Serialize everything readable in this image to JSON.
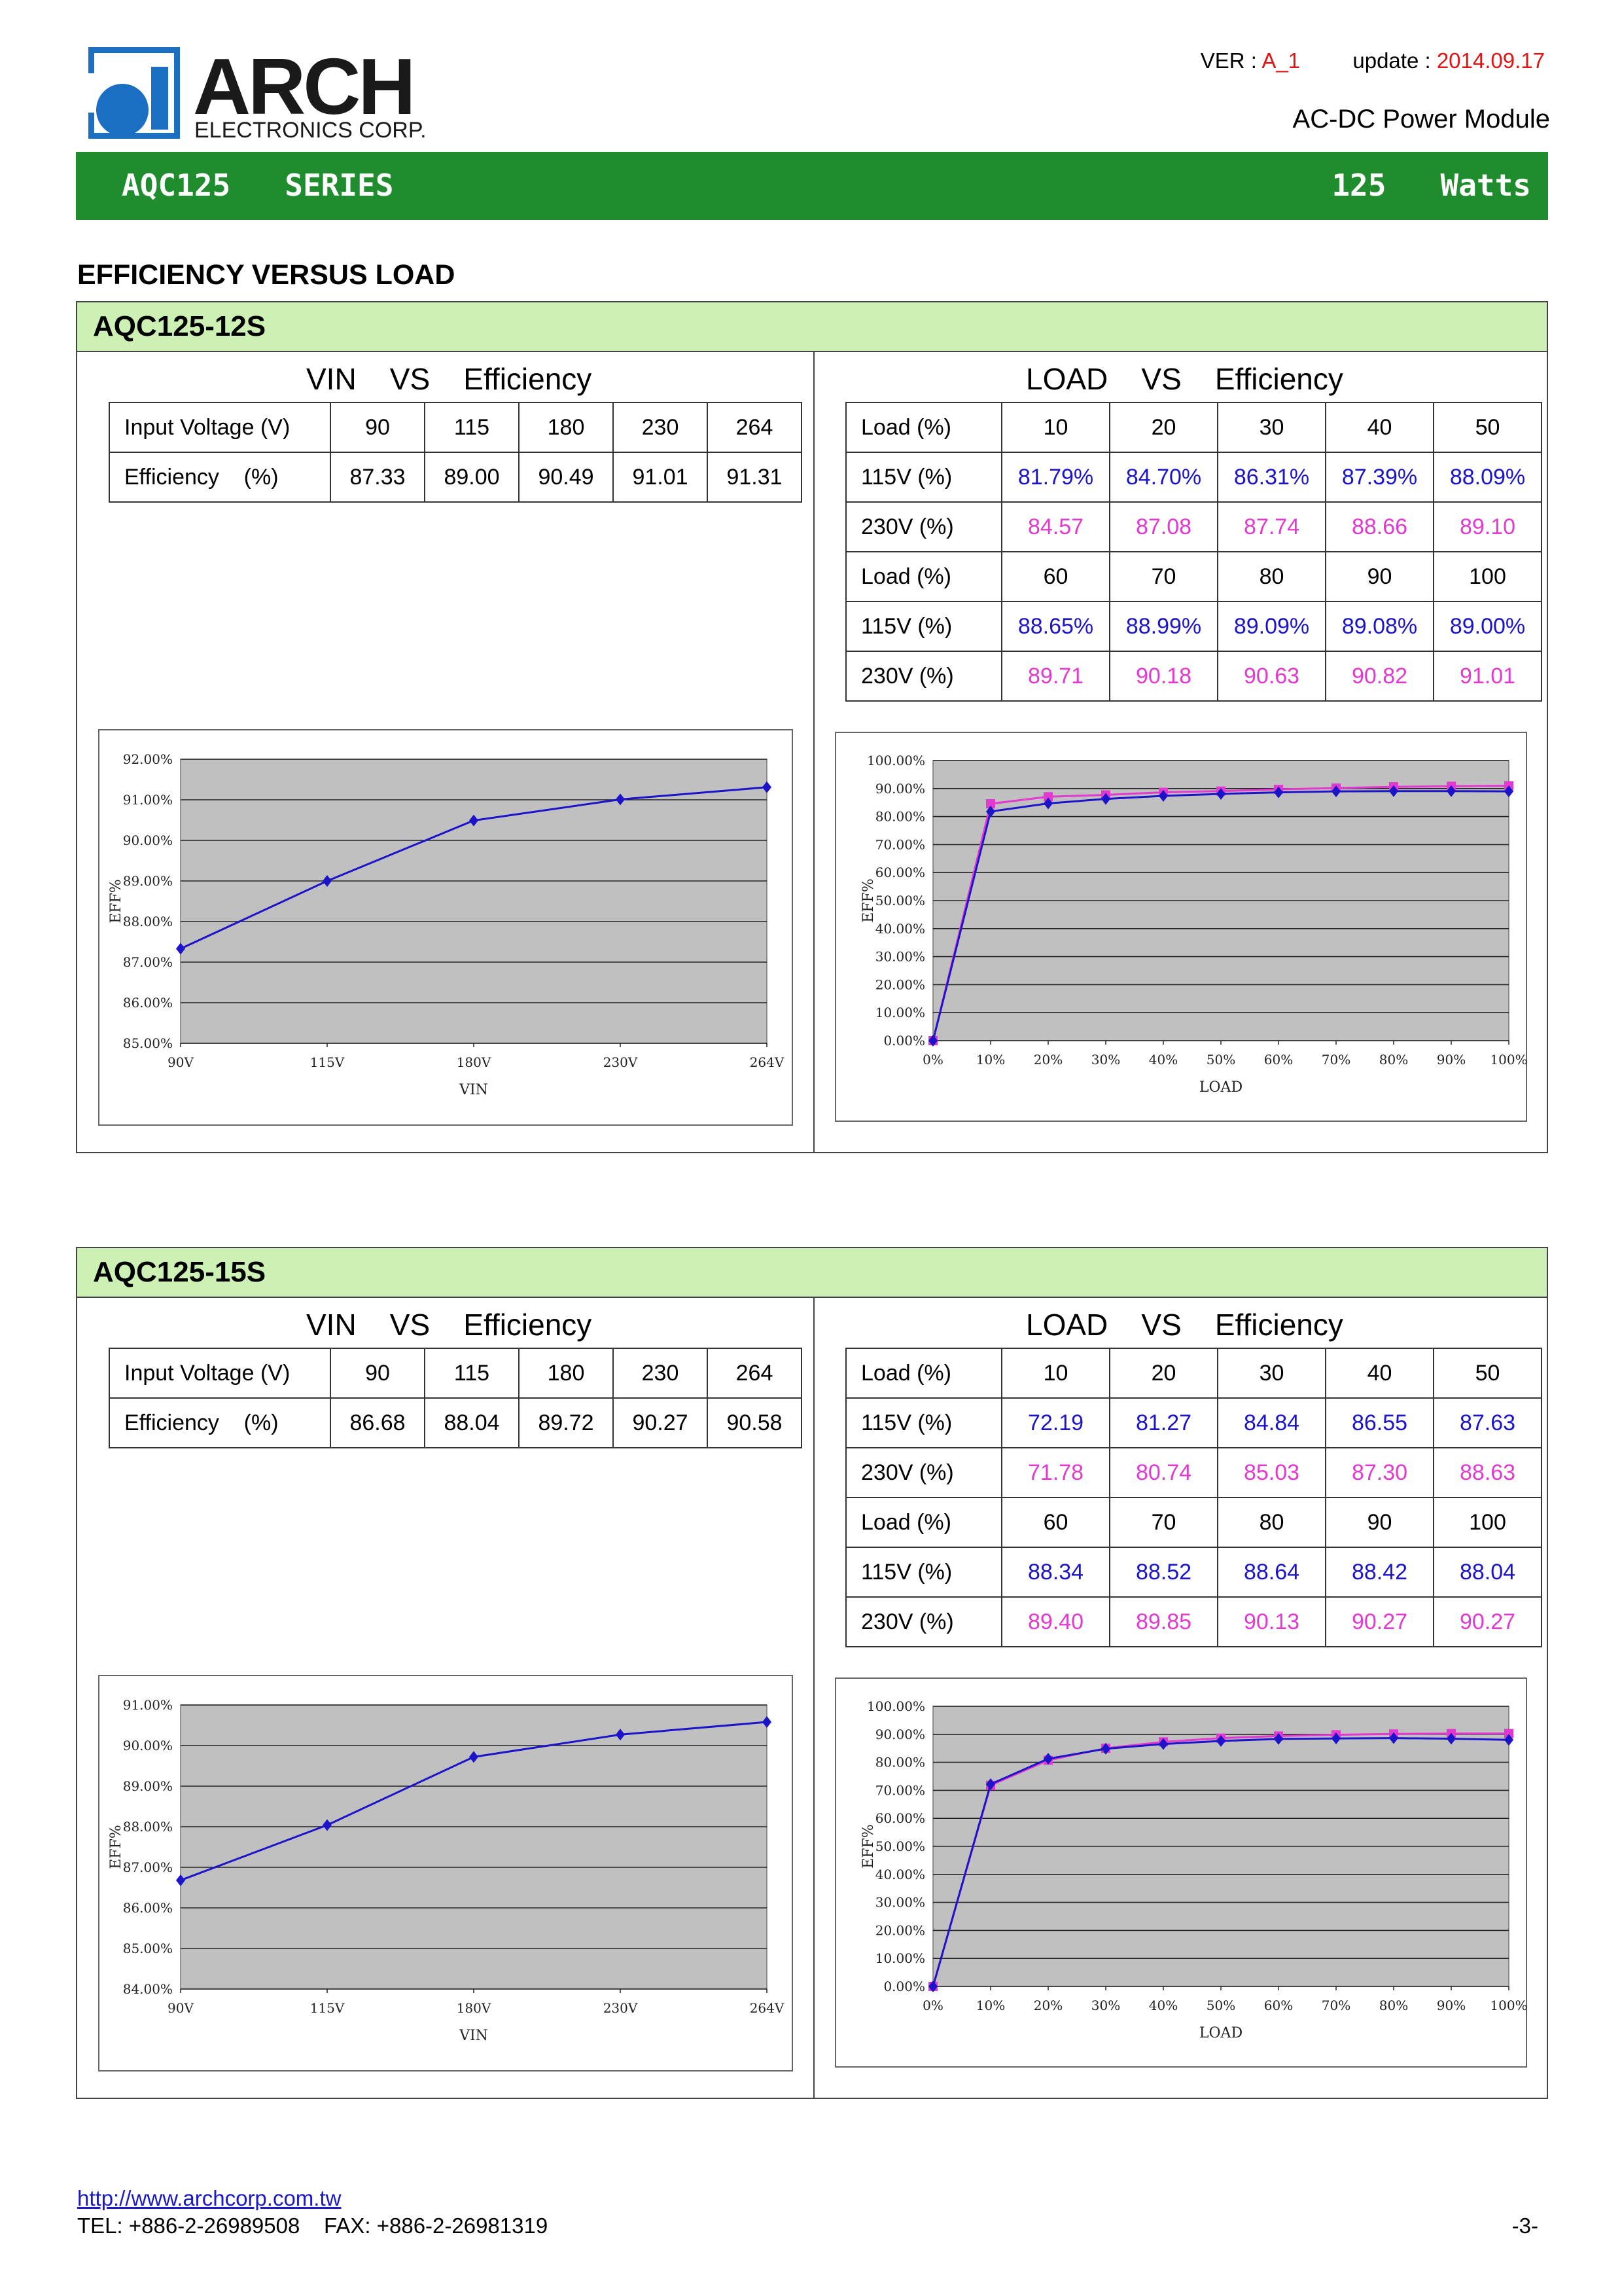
{
  "header": {
    "logo_word": "ARCH",
    "logo_sub": "ELECTRONICS CORP.",
    "ver_label": "VER : ",
    "ver_value": "A_1",
    "update_label": "update : ",
    "update_value": "2014.09.17",
    "subtitle": "AC-DC Power Module",
    "series_left": "AQC125   SERIES",
    "series_right": "125   Watts",
    "section_title": "EFFICIENCY VERSUS LOAD"
  },
  "colors": {
    "green_bar": "#1f8c2d",
    "panel_head": "#cdf0b5",
    "series_115": "#1c14c8",
    "series_230": "#e23ad0",
    "plot_bg": "#c0c0c0",
    "version": "#e01515"
  },
  "models": [
    {
      "name": "AQC125-12S",
      "vin_caption": "VIN    VS    Efficiency",
      "load_caption": "LOAD    VS    Efficiency",
      "vin_table": {
        "row1_label": "Input Voltage (V)",
        "voltages": [
          "90",
          "115",
          "180",
          "230",
          "264"
        ],
        "row2_label": "Efficiency    (%)",
        "efficiency": [
          "87.33",
          "89.00",
          "90.49",
          "91.01",
          "91.31"
        ]
      },
      "load_table": {
        "load_label": "Load (%)",
        "v115_label": "115V (%)",
        "v230_label": "230V (%)",
        "loads_a": [
          "10",
          "20",
          "30",
          "40",
          "50"
        ],
        "v115_a": [
          "81.79%",
          "84.70%",
          "86.31%",
          "87.39%",
          "88.09%"
        ],
        "v230_a": [
          "84.57",
          "87.08",
          "87.74",
          "88.66",
          "89.10"
        ],
        "loads_b": [
          "60",
          "70",
          "80",
          "90",
          "100"
        ],
        "v115_b": [
          "88.65%",
          "88.99%",
          "89.09%",
          "89.08%",
          "89.00%"
        ],
        "v230_b": [
          "89.71",
          "90.18",
          "90.63",
          "90.82",
          "91.01"
        ]
      }
    },
    {
      "name": "AQC125-15S",
      "vin_caption": "VIN    VS    Efficiency",
      "load_caption": "LOAD    VS    Efficiency",
      "vin_table": {
        "row1_label": "Input Voltage (V)",
        "voltages": [
          "90",
          "115",
          "180",
          "230",
          "264"
        ],
        "row2_label": "Efficiency    (%)",
        "efficiency": [
          "86.68",
          "88.04",
          "89.72",
          "90.27",
          "90.58"
        ]
      },
      "load_table": {
        "load_label": "Load (%)",
        "v115_label": "115V (%)",
        "v230_label": "230V (%)",
        "loads_a": [
          "10",
          "20",
          "30",
          "40",
          "50"
        ],
        "v115_a": [
          "72.19",
          "81.27",
          "84.84",
          "86.55",
          "87.63"
        ],
        "v230_a": [
          "71.78",
          "80.74",
          "85.03",
          "87.30",
          "88.63"
        ],
        "loads_b": [
          "60",
          "70",
          "80",
          "90",
          "100"
        ],
        "v115_b": [
          "88.34",
          "88.52",
          "88.64",
          "88.42",
          "88.04"
        ],
        "v230_b": [
          "89.40",
          "89.85",
          "90.13",
          "90.27",
          "90.27"
        ]
      }
    }
  ],
  "chart_data": [
    {
      "type": "line",
      "model": "AQC125-12S",
      "categories": [
        "90V",
        "115V",
        "180V",
        "230V",
        "264V"
      ],
      "series": [
        {
          "values": [
            87.33,
            89.0,
            90.49,
            91.01,
            91.31
          ]
        }
      ],
      "xlabel": "VIN",
      "ylabel": "EFF%",
      "ylim": [
        85,
        92
      ],
      "yticks": [
        "85.00%",
        "86.00%",
        "87.00%",
        "88.00%",
        "89.00%",
        "90.00%",
        "91.00%",
        "92.00%"
      ],
      "grid": true,
      "legend": "none"
    },
    {
      "type": "line",
      "model": "AQC125-12S",
      "categories": [
        "0%",
        "10%",
        "20%",
        "30%",
        "40%",
        "50%",
        "60%",
        "70%",
        "80%",
        "90%",
        "100%"
      ],
      "series": [
        {
          "values": [
            0,
            81.79,
            84.7,
            86.31,
            87.39,
            88.09,
            88.65,
            88.99,
            89.09,
            89.08,
            89.0
          ]
        },
        {
          "values": [
            0,
            84.57,
            87.08,
            87.74,
            88.66,
            89.1,
            89.71,
            90.18,
            90.63,
            90.82,
            91.01
          ]
        }
      ],
      "xlabel": "LOAD",
      "ylabel": "EFF%",
      "ylim": [
        0,
        100
      ],
      "yticks": [
        "0.00%",
        "10.00%",
        "20.00%",
        "30.00%",
        "40.00%",
        "50.00%",
        "60.00%",
        "70.00%",
        "80.00%",
        "90.00%",
        "100.00%"
      ],
      "grid": true,
      "legend": "none"
    },
    {
      "type": "line",
      "model": "AQC125-15S",
      "categories": [
        "90V",
        "115V",
        "180V",
        "230V",
        "264V"
      ],
      "series": [
        {
          "values": [
            86.68,
            88.04,
            89.72,
            90.27,
            90.58
          ]
        }
      ],
      "xlabel": "VIN",
      "ylabel": "EFF%",
      "ylim": [
        84,
        91
      ],
      "yticks": [
        "84.00%",
        "85.00%",
        "86.00%",
        "87.00%",
        "88.00%",
        "89.00%",
        "90.00%",
        "91.00%"
      ],
      "grid": true,
      "legend": "none"
    },
    {
      "type": "line",
      "model": "AQC125-15S",
      "categories": [
        "0%",
        "10%",
        "20%",
        "30%",
        "40%",
        "50%",
        "60%",
        "70%",
        "80%",
        "90%",
        "100%"
      ],
      "series": [
        {
          "values": [
            0,
            72.19,
            81.27,
            84.84,
            86.55,
            87.63,
            88.34,
            88.52,
            88.64,
            88.42,
            88.04
          ]
        },
        {
          "values": [
            0,
            71.78,
            80.74,
            85.03,
            87.3,
            88.63,
            89.4,
            89.85,
            90.13,
            90.27,
            90.27
          ]
        }
      ],
      "xlabel": "LOAD",
      "ylabel": "EFF%",
      "ylim": [
        0,
        100
      ],
      "yticks": [
        "0.00%",
        "10.00%",
        "20.00%",
        "30.00%",
        "40.00%",
        "50.00%",
        "60.00%",
        "70.00%",
        "80.00%",
        "90.00%",
        "100.00%"
      ],
      "grid": true,
      "legend": "none"
    }
  ],
  "footer": {
    "url": "http://www.archcorp.com.tw",
    "contact": "TEL: +886-2-26989508    FAX: +886-2-26981319",
    "page": "-3-"
  }
}
